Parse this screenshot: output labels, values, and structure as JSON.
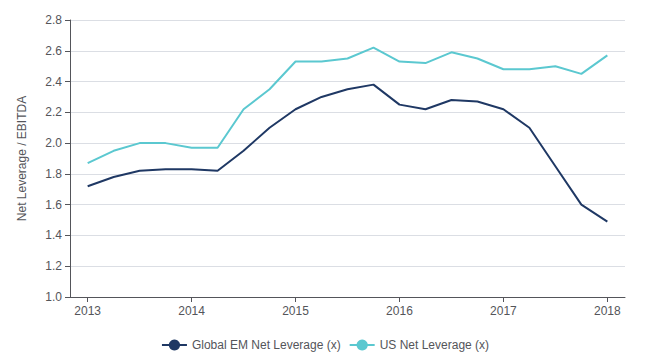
{
  "chart_data": {
    "type": "line",
    "ylabel": "Net Leverage / EBITDA",
    "x": [
      2013.0,
      2013.25,
      2013.5,
      2013.75,
      2014.0,
      2014.25,
      2014.5,
      2014.75,
      2015.0,
      2015.25,
      2015.5,
      2015.75,
      2016.0,
      2016.25,
      2016.5,
      2016.75,
      2017.0,
      2017.25,
      2017.5,
      2017.75,
      2018.0
    ],
    "series": [
      {
        "name": "Global EM Net Leverage (x)",
        "color": "#1f3864",
        "values": [
          1.72,
          1.78,
          1.82,
          1.83,
          1.83,
          1.82,
          1.95,
          2.1,
          2.22,
          2.3,
          2.35,
          2.38,
          2.25,
          2.22,
          2.28,
          2.27,
          2.22,
          2.1,
          1.85,
          1.6,
          1.49
        ]
      },
      {
        "name": "US Net Leverage (x)",
        "color": "#5bc8d0",
        "values": [
          1.87,
          1.95,
          2.0,
          2.0,
          1.97,
          1.97,
          2.22,
          2.35,
          2.53,
          2.53,
          2.55,
          2.62,
          2.53,
          2.52,
          2.59,
          2.55,
          2.48,
          2.48,
          2.5,
          2.45,
          2.57
        ]
      }
    ],
    "xlim": [
      2012.83,
      2018.17
    ],
    "xticks": [
      2013,
      2014,
      2015,
      2016,
      2017,
      2018
    ],
    "ylim": [
      1.0,
      2.8
    ],
    "yticks": [
      {
        "value": 1.0,
        "label": "1.0"
      },
      1.2,
      1.4,
      1.6,
      1.8,
      {
        "value": 2.0,
        "label": "2.0"
      },
      2.2,
      2.4,
      2.6,
      2.8
    ],
    "grid": true,
    "legend": "bottom"
  }
}
